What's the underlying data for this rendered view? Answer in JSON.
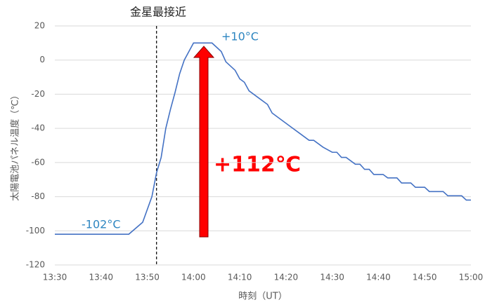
{
  "chart_data": {
    "type": "line",
    "x": [
      "13:30",
      "13:46",
      "13:49",
      "13:51",
      "13:52",
      "13:53",
      "13:54",
      "13:55",
      "13:56",
      "13:57",
      "13:58",
      "13:59",
      "14:00",
      "14:04",
      "14:06",
      "14:07",
      "14:09",
      "14:10",
      "14:11",
      "14:12",
      "14:14",
      "14:16",
      "14:17",
      "14:19",
      "14:21",
      "14:23",
      "14:25",
      "14:26",
      "14:28",
      "14:30",
      "14:31",
      "14:32",
      "14:33",
      "14:35",
      "14:36",
      "14:37",
      "14:38",
      "14:39",
      "14:41",
      "14:42",
      "14:44",
      "14:45",
      "14:47",
      "14:48",
      "14:50",
      "14:51",
      "14:54",
      "14:55",
      "14:58",
      "14:59",
      "15:00"
    ],
    "series": [
      {
        "name": "太陽電池パネル温度",
        "color": "#4472c4",
        "values": [
          -102,
          -102,
          -95,
          -80,
          -66,
          -57,
          -40,
          -29,
          -19,
          -8,
          0,
          5,
          10,
          10,
          5,
          -1,
          -6,
          -11,
          -13,
          -18,
          -22,
          -26,
          -31,
          -35,
          -39,
          -43,
          -47,
          -47,
          -51,
          -54,
          -54,
          -57,
          -57,
          -61,
          -61,
          -64,
          -64,
          -67,
          -67,
          -69,
          -69,
          -72,
          -72,
          -74.5,
          -74.5,
          -77,
          -77,
          -79.5,
          -79.5,
          -82,
          -82
        ]
      }
    ],
    "xlim": [
      "13:30",
      "15:00"
    ],
    "xticks": [
      "13:30",
      "13:40",
      "13:50",
      "14:00",
      "14:10",
      "14:20",
      "14:30",
      "14:40",
      "14:50",
      "15:00"
    ],
    "ylim": [
      -120,
      20
    ],
    "yticks": [
      -120,
      -100,
      -80,
      -60,
      -40,
      -20,
      0,
      20
    ],
    "grid": true,
    "x_label": "時刻（UT）",
    "y_label": "太陽電池パネル温度（℃）",
    "event": {
      "text": "金星最接近",
      "x": "13:52"
    },
    "annotations": {
      "max": "+10°C",
      "min": "-102°C",
      "diff": "+112℃"
    }
  }
}
